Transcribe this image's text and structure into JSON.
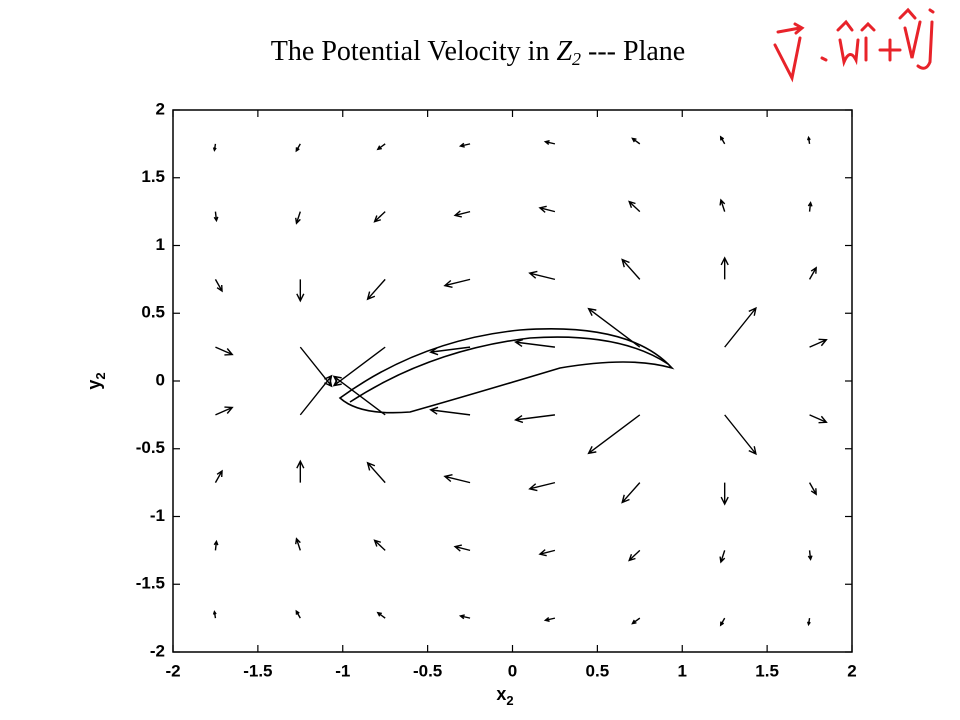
{
  "chart_data": {
    "type": "quiver",
    "title": {
      "text": "The Potential Velocity in ",
      "var": "Z",
      "sub": "2",
      "tail": " --- Plane"
    },
    "x_label": {
      "base": "x",
      "sub": "2"
    },
    "y_label": {
      "base": "y",
      "sub": "2"
    },
    "xlim": [
      -2,
      2
    ],
    "ylim": [
      -2,
      2
    ],
    "xticks": [
      -2,
      -1.5,
      -1,
      -0.5,
      0,
      0.5,
      1,
      1.5,
      2
    ],
    "yticks": [
      -2,
      -1.5,
      -1,
      -0.5,
      0,
      0.5,
      1,
      1.5,
      2
    ],
    "color": "#000000",
    "series": [
      {
        "x": [
          -1.75,
          -1.25,
          -0.75,
          -0.25,
          0.25,
          0.75,
          1.25,
          1.75,
          -1.75,
          -1.25,
          -0.75,
          -0.25,
          0.25,
          0.75,
          1.25,
          1.75,
          -1.75,
          -1.25,
          -0.75,
          -0.25,
          0.25,
          0.75,
          1.25,
          1.75,
          -1.75,
          -1.25,
          -0.75,
          -0.25,
          0.25,
          0.75,
          1.25,
          1.75,
          -1.75,
          -1.25,
          -0.75,
          -0.25,
          0.25,
          0.75,
          1.25,
          1.75,
          -1.75,
          -1.25,
          -0.75,
          -0.25,
          0.25,
          0.75,
          1.25,
          1.75,
          -1.75,
          -1.25,
          -0.75,
          -0.25,
          0.25,
          0.75,
          1.25,
          1.75,
          -1.75,
          -1.25,
          -0.75,
          -0.25,
          0.25,
          0.75,
          1.25,
          1.75
        ],
        "y": [
          1.75,
          1.75,
          1.75,
          1.75,
          1.75,
          1.75,
          1.75,
          1.75,
          1.25,
          1.25,
          1.25,
          1.25,
          1.25,
          1.25,
          1.25,
          1.25,
          0.75,
          0.75,
          0.75,
          0.75,
          0.75,
          0.75,
          0.75,
          0.75,
          0.25,
          0.25,
          0.25,
          0.25,
          0.25,
          0.25,
          0.25,
          0.25,
          -0.25,
          -0.25,
          -0.25,
          -0.25,
          -0.25,
          -0.25,
          -0.25,
          -0.25,
          -0.75,
          -0.75,
          -0.75,
          -0.75,
          -0.75,
          -0.75,
          -0.75,
          -0.75,
          -1.25,
          -1.25,
          -1.25,
          -1.25,
          -1.25,
          -1.25,
          -1.25,
          -1.25,
          -1.75,
          -1.75,
          -1.75,
          -1.75,
          -1.75,
          -1.75,
          -1.75,
          -1.75
        ],
        "u": [
          -0.05,
          -0.2,
          -0.37,
          -0.48,
          -0.48,
          -0.37,
          -0.2,
          -0.05,
          0.05,
          -0.19,
          -0.53,
          -0.75,
          -0.75,
          -0.53,
          -0.19,
          0.05,
          0.33,
          0,
          -0.88,
          -1.26,
          -1.26,
          -0.88,
          0,
          0.33,
          0.84,
          1.56,
          -2.56,
          -1.97,
          -1.97,
          -2.56,
          1.56,
          0.84,
          0.84,
          1.56,
          -2.56,
          -1.97,
          -1.97,
          -2.56,
          1.56,
          0.84,
          0.33,
          0,
          -0.88,
          -1.26,
          -1.26,
          -0.88,
          0,
          0.33,
          0.05,
          -0.19,
          -0.53,
          -0.75,
          -0.75,
          -0.53,
          -0.19,
          0.05,
          -0.05,
          -0.2,
          -0.37,
          -0.48,
          -0.48,
          -0.37,
          -0.2,
          -0.05
        ],
        "v": [
          -0.32,
          -0.35,
          -0.27,
          -0.11,
          0.11,
          0.27,
          0.35,
          0.32,
          -0.45,
          -0.58,
          -0.5,
          -0.19,
          0.19,
          0.5,
          0.58,
          0.45,
          -0.58,
          -1.07,
          -0.99,
          -0.31,
          0.31,
          0.99,
          1.07,
          0.58,
          -0.37,
          -1.95,
          -1.92,
          -0.25,
          0.25,
          1.92,
          1.95,
          0.37,
          0.37,
          1.95,
          1.92,
          0.25,
          -0.25,
          -1.92,
          -1.95,
          -0.37,
          0.58,
          1.07,
          0.99,
          0.31,
          -0.31,
          -0.99,
          -1.07,
          -0.58,
          0.45,
          0.58,
          0.5,
          0.19,
          -0.19,
          -0.5,
          -0.58,
          -0.45,
          0.32,
          0.35,
          0.27,
          0.11,
          -0.11,
          -0.27,
          -0.35,
          -0.32
        ]
      }
    ]
  }
}
